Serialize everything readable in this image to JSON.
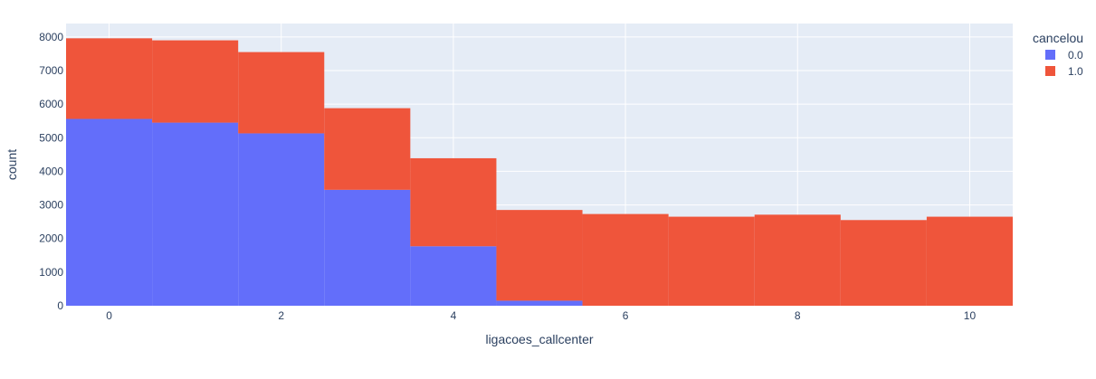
{
  "chart_data": {
    "type": "bar",
    "stacked": true,
    "categories": [
      0,
      1,
      2,
      3,
      4,
      5,
      6,
      7,
      8,
      9,
      10
    ],
    "series": [
      {
        "name": "0.0",
        "color": "#636efa",
        "values": [
          5560,
          5450,
          5130,
          3450,
          1770,
          150,
          0,
          0,
          0,
          0,
          0
        ]
      },
      {
        "name": "1.0",
        "color": "#ef553b",
        "values": [
          2400,
          2450,
          2420,
          2430,
          2620,
          2700,
          2730,
          2650,
          2710,
          2550,
          2650
        ]
      }
    ],
    "xlabel": "ligacoes_callcenter",
    "ylabel": "count",
    "xlim": [
      -0.5,
      10.5
    ],
    "ylim": [
      0,
      8400
    ],
    "xticks": [
      0,
      2,
      4,
      6,
      8,
      10
    ],
    "yticks": [
      0,
      1000,
      2000,
      3000,
      4000,
      5000,
      6000,
      7000,
      8000
    ],
    "grid": true,
    "plot_background": "#e5ecf6",
    "legend": {
      "title": "cancelou",
      "position": "top-right"
    }
  }
}
